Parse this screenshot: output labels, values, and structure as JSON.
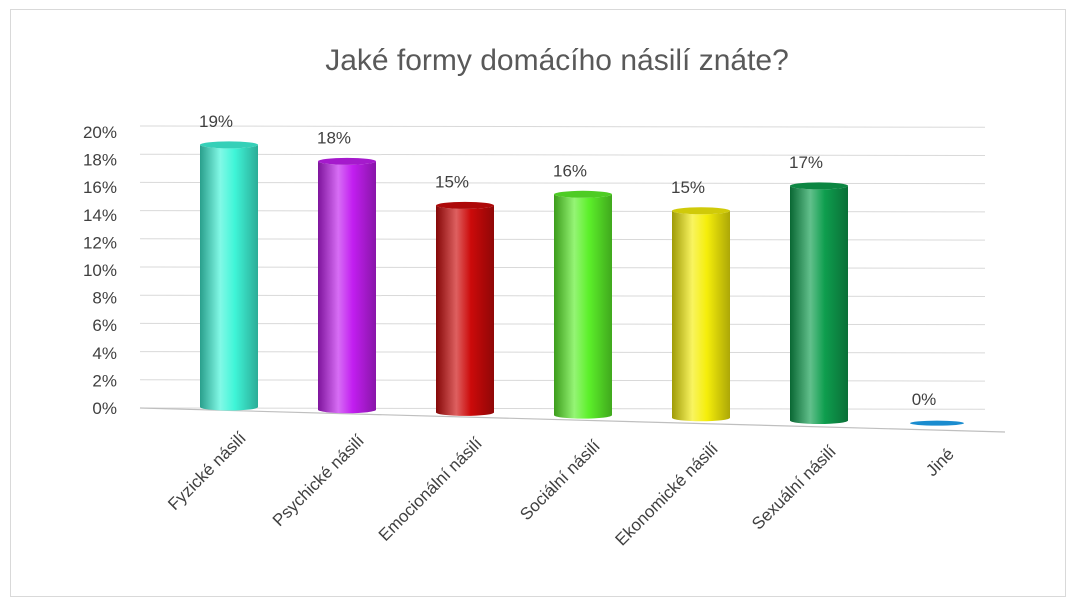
{
  "chart_data": {
    "type": "bar",
    "title": "Jaké formy domácího násilí znáte?",
    "categories": [
      "Fyzické násilí",
      "Psychické násilí",
      "Emocionální násilí",
      "Sociální násilí",
      "Ekonomické násilí",
      "Sexuální násilí",
      "Jiné"
    ],
    "values": [
      19,
      18,
      15,
      16,
      15,
      17,
      0
    ],
    "data_labels": [
      "19%",
      "18%",
      "15%",
      "16%",
      "15%",
      "17%",
      "0%"
    ],
    "y_ticks": [
      "0%",
      "2%",
      "4%",
      "6%",
      "8%",
      "10%",
      "12%",
      "14%",
      "16%",
      "18%",
      "20%"
    ],
    "ylim": [
      0,
      20
    ],
    "grid": true,
    "legend": "none",
    "colors": [
      "#3ff5d8",
      "#c21ef0",
      "#cc0a0a",
      "#5cf02a",
      "#f5ee0a",
      "#0e9e4e",
      "#1a8ccf"
    ]
  }
}
